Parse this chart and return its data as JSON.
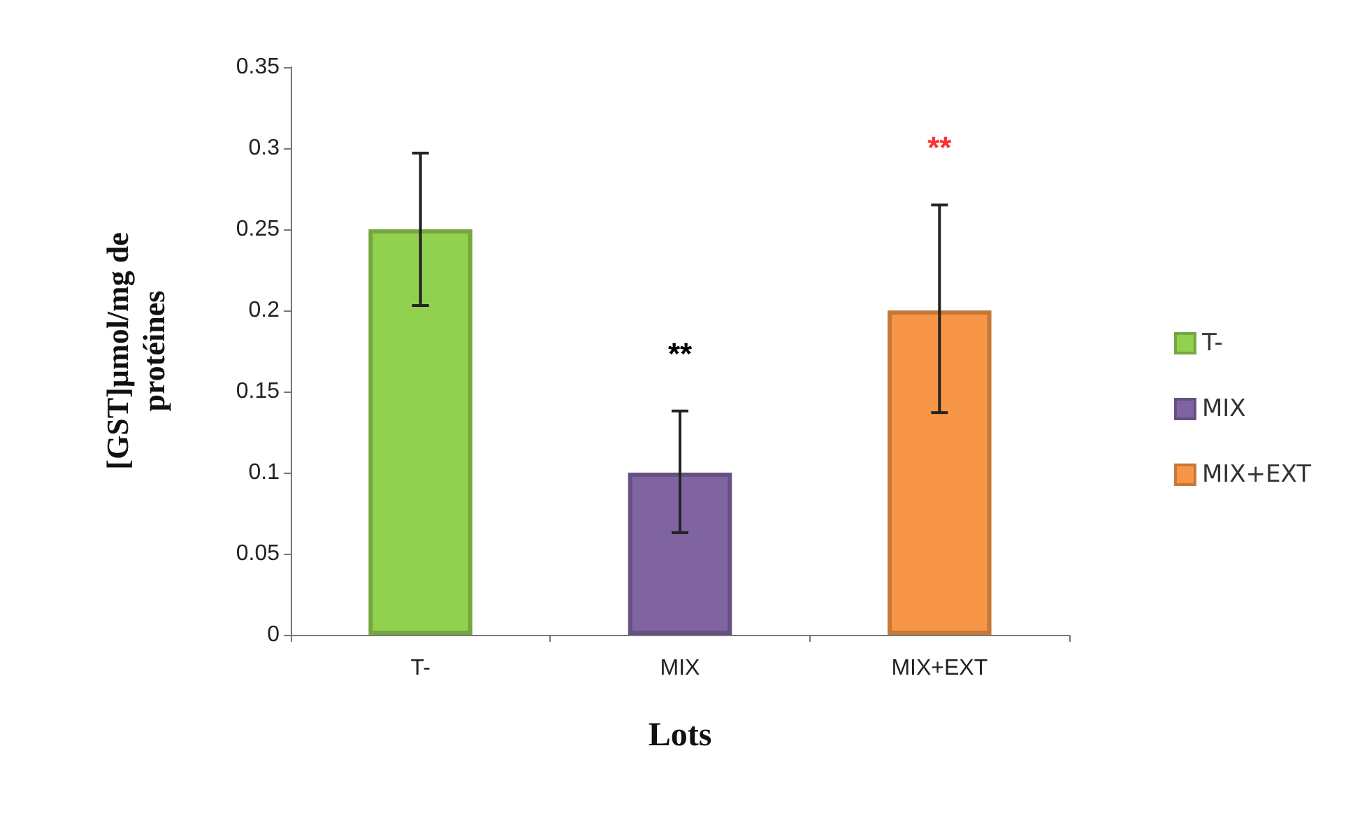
{
  "chart_data": {
    "type": "bar",
    "xlabel": "Lots",
    "ylabel": "[GST]µmol/mg de\nprotéines",
    "categories": [
      "T-",
      "MIX",
      "MIX+EXT"
    ],
    "series": [
      {
        "name": "T-",
        "color": "#92d050",
        "values": [
          0.25,
          null,
          null
        ],
        "errors": [
          0.047,
          null,
          null
        ]
      },
      {
        "name": "MIX",
        "color": "#8064a2",
        "values": [
          null,
          0.1,
          null
        ],
        "errors": [
          null,
          [
            0.063,
            0.138
          ],
          null
        ]
      },
      {
        "name": "MIX+EXT",
        "color": "#f79646",
        "values": [
          null,
          null,
          0.2
        ],
        "errors": [
          null,
          null,
          [
            0.137,
            0.265
          ]
        ]
      }
    ],
    "ylim": [
      0,
      0.35
    ],
    "yticks": [
      0,
      0.05,
      0.1,
      0.15,
      0.2,
      0.25,
      0.3,
      0.35
    ],
    "grid": false,
    "legend": "right",
    "annotations": [
      "**",
      "**"
    ]
  }
}
